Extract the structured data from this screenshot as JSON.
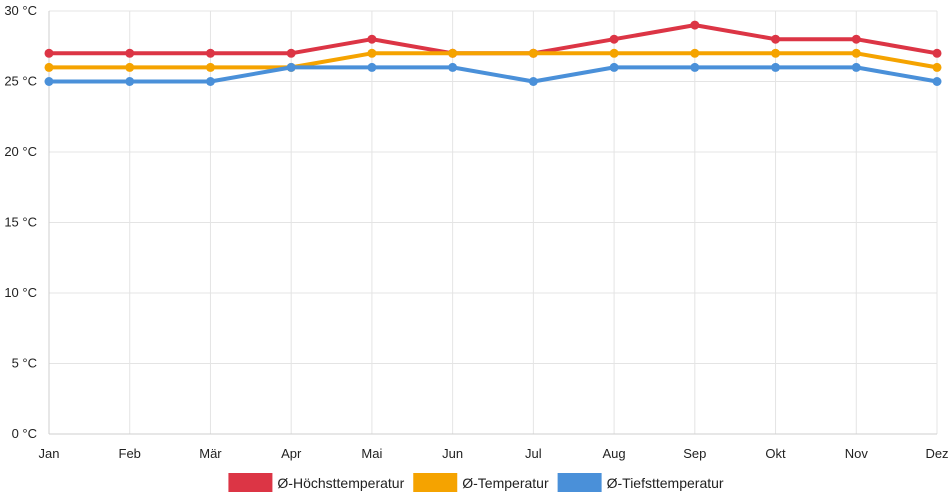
{
  "chart_data": {
    "type": "line",
    "title": "",
    "xlabel": "",
    "ylabel": "",
    "categories": [
      "Jan",
      "Feb",
      "Mär",
      "Apr",
      "Mai",
      "Jun",
      "Jul",
      "Aug",
      "Sep",
      "Okt",
      "Nov",
      "Dez"
    ],
    "y_ticks": [
      0,
      5,
      10,
      15,
      20,
      25,
      30
    ],
    "y_unit": "°C",
    "ylim": [
      0,
      30
    ],
    "grid": true,
    "legend_position": "bottom",
    "series": [
      {
        "name": "Ø-Höchsttemperatur",
        "color": "#dc3545",
        "values": [
          27,
          27,
          27,
          27,
          28,
          27,
          27,
          28,
          29,
          28,
          28,
          27
        ]
      },
      {
        "name": "Ø-Temperatur",
        "color": "#f5a300",
        "values": [
          26,
          26,
          26,
          26,
          27,
          27,
          27,
          27,
          27,
          27,
          27,
          26
        ]
      },
      {
        "name": "Ø-Tiefsttemperatur",
        "color": "#4a90d9",
        "values": [
          25,
          25,
          25,
          26,
          26,
          26,
          25,
          26,
          26,
          26,
          26,
          25
        ]
      }
    ]
  }
}
